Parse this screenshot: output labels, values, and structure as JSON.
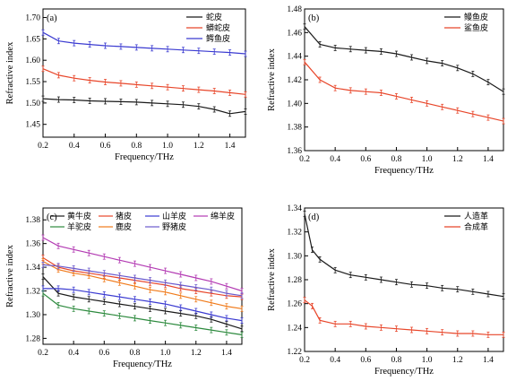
{
  "chart_data": [
    {
      "panel": "(a)",
      "type": "line",
      "xlabel": "Frequency/THz",
      "ylabel": "Refractive index",
      "xlim": [
        0.2,
        1.5
      ],
      "ylim": [
        1.42,
        1.72
      ],
      "xticks": [
        "0.2",
        "0.4",
        "0.6",
        "0.8",
        "1.0",
        "1.2",
        "1.4"
      ],
      "yticks": [
        "1.45",
        "1.50",
        "1.55",
        "1.60",
        "1.65",
        "1.70"
      ],
      "legend_position": "top-right",
      "series": [
        {
          "name": "蛇皮",
          "color": "#1a1a1a",
          "x": [
            0.2,
            0.3,
            0.4,
            0.5,
            0.6,
            0.7,
            0.8,
            0.9,
            1.0,
            1.1,
            1.2,
            1.3,
            1.4,
            1.5
          ],
          "y": [
            1.51,
            1.508,
            1.507,
            1.505,
            1.504,
            1.503,
            1.502,
            1.5,
            1.498,
            1.496,
            1.492,
            1.485,
            1.475,
            1.48
          ]
        },
        {
          "name": "蟒蛇皮",
          "color": "#e8462a",
          "x": [
            0.2,
            0.3,
            0.4,
            0.5,
            0.6,
            0.7,
            0.8,
            0.9,
            1.0,
            1.1,
            1.2,
            1.3,
            1.4,
            1.5
          ],
          "y": [
            1.58,
            1.565,
            1.558,
            1.553,
            1.549,
            1.546,
            1.543,
            1.54,
            1.537,
            1.534,
            1.531,
            1.528,
            1.524,
            1.52
          ]
        },
        {
          "name": "鳄鱼皮",
          "color": "#3b3bd1",
          "x": [
            0.2,
            0.3,
            0.4,
            0.5,
            0.6,
            0.7,
            0.8,
            0.9,
            1.0,
            1.1,
            1.2,
            1.3,
            1.4,
            1.5
          ],
          "y": [
            1.665,
            1.645,
            1.64,
            1.637,
            1.634,
            1.632,
            1.63,
            1.628,
            1.626,
            1.624,
            1.622,
            1.62,
            1.618,
            1.615
          ]
        }
      ]
    },
    {
      "panel": "(b)",
      "type": "line",
      "xlabel": "Frequency/THz",
      "ylabel": "Refractive index",
      "xlim": [
        0.2,
        1.5
      ],
      "ylim": [
        1.36,
        1.48
      ],
      "xticks": [
        "0.2",
        "0.4",
        "0.6",
        "0.8",
        "1.0",
        "1.2",
        "1.4"
      ],
      "yticks": [
        "1.36",
        "1.38",
        "1.40",
        "1.42",
        "1.44",
        "1.46",
        "1.48"
      ],
      "legend_position": "top-right",
      "series": [
        {
          "name": "鳗鱼皮",
          "color": "#1a1a1a",
          "x": [
            0.2,
            0.3,
            0.4,
            0.5,
            0.6,
            0.7,
            0.8,
            0.9,
            1.0,
            1.1,
            1.2,
            1.3,
            1.4,
            1.5
          ],
          "y": [
            1.465,
            1.45,
            1.447,
            1.446,
            1.445,
            1.444,
            1.442,
            1.439,
            1.436,
            1.434,
            1.43,
            1.425,
            1.418,
            1.41
          ]
        },
        {
          "name": "鲨鱼皮",
          "color": "#e8462a",
          "x": [
            0.2,
            0.3,
            0.4,
            0.5,
            0.6,
            0.7,
            0.8,
            0.9,
            1.0,
            1.1,
            1.2,
            1.3,
            1.4,
            1.5
          ],
          "y": [
            1.435,
            1.42,
            1.413,
            1.411,
            1.41,
            1.409,
            1.406,
            1.403,
            1.4,
            1.397,
            1.394,
            1.391,
            1.388,
            1.385
          ]
        }
      ]
    },
    {
      "panel": "(c)",
      "type": "line",
      "xlabel": "Frequency/THz",
      "ylabel": "Refractive index",
      "xlim": [
        0.2,
        1.5
      ],
      "ylim": [
        1.275,
        1.39
      ],
      "xticks": [
        "0.2",
        "0.4",
        "0.6",
        "0.8",
        "1.0",
        "1.2",
        "1.4"
      ],
      "yticks": [
        "1.28",
        "1.30",
        "1.32",
        "1.34",
        "1.36",
        "1.38"
      ],
      "legend_position": "top",
      "series": [
        {
          "name": "黄牛皮",
          "color": "#1a1a1a",
          "x": [
            0.2,
            0.3,
            0.4,
            0.5,
            0.6,
            0.7,
            0.8,
            0.9,
            1.0,
            1.1,
            1.2,
            1.3,
            1.4,
            1.5
          ],
          "y": [
            1.332,
            1.318,
            1.315,
            1.313,
            1.311,
            1.309,
            1.307,
            1.305,
            1.303,
            1.301,
            1.299,
            1.296,
            1.292,
            1.288
          ]
        },
        {
          "name": "猪皮",
          "color": "#e8462a",
          "x": [
            0.2,
            0.3,
            0.4,
            0.5,
            0.6,
            0.7,
            0.8,
            0.9,
            1.0,
            1.1,
            1.2,
            1.3,
            1.4,
            1.5
          ],
          "y": [
            1.348,
            1.34,
            1.337,
            1.335,
            1.333,
            1.331,
            1.329,
            1.327,
            1.325,
            1.322,
            1.32,
            1.318,
            1.316,
            1.315
          ]
        },
        {
          "name": "山羊皮",
          "color": "#3b3bd1",
          "x": [
            0.2,
            0.3,
            0.4,
            0.5,
            0.6,
            0.7,
            0.8,
            0.9,
            1.0,
            1.1,
            1.2,
            1.3,
            1.4,
            1.5
          ],
          "y": [
            1.322,
            1.322,
            1.321,
            1.319,
            1.317,
            1.315,
            1.313,
            1.311,
            1.309,
            1.306,
            1.303,
            1.3,
            1.297,
            1.295
          ]
        },
        {
          "name": "绵羊皮",
          "color": "#b33bb3",
          "x": [
            0.2,
            0.3,
            0.4,
            0.5,
            0.6,
            0.7,
            0.8,
            0.9,
            1.0,
            1.1,
            1.2,
            1.3,
            1.4,
            1.5
          ],
          "y": [
            1.365,
            1.358,
            1.355,
            1.352,
            1.349,
            1.346,
            1.343,
            1.34,
            1.337,
            1.334,
            1.331,
            1.328,
            1.324,
            1.32
          ]
        },
        {
          "name": "羊驼皮",
          "color": "#2d8a3e",
          "x": [
            0.2,
            0.3,
            0.4,
            0.5,
            0.6,
            0.7,
            0.8,
            0.9,
            1.0,
            1.1,
            1.2,
            1.3,
            1.4,
            1.5
          ],
          "y": [
            1.318,
            1.308,
            1.305,
            1.303,
            1.301,
            1.299,
            1.297,
            1.295,
            1.293,
            1.291,
            1.289,
            1.287,
            1.285,
            1.283
          ]
        },
        {
          "name": "鹿皮",
          "color": "#f07a1a",
          "x": [
            0.2,
            0.3,
            0.4,
            0.5,
            0.6,
            0.7,
            0.8,
            0.9,
            1.0,
            1.1,
            1.2,
            1.3,
            1.4,
            1.5
          ],
          "y": [
            1.345,
            1.338,
            1.335,
            1.333,
            1.33,
            1.327,
            1.324,
            1.321,
            1.319,
            1.316,
            1.313,
            1.31,
            1.307,
            1.305
          ]
        },
        {
          "name": "野猪皮",
          "color": "#6a5acd",
          "x": [
            0.2,
            0.3,
            0.4,
            0.5,
            0.6,
            0.7,
            0.8,
            0.9,
            1.0,
            1.1,
            1.2,
            1.3,
            1.4,
            1.5
          ],
          "y": [
            1.342,
            1.341,
            1.339,
            1.337,
            1.335,
            1.333,
            1.331,
            1.329,
            1.327,
            1.325,
            1.323,
            1.321,
            1.318,
            1.316
          ]
        }
      ]
    },
    {
      "panel": "(d)",
      "type": "line",
      "xlabel": "Frequency/THz",
      "ylabel": "Refractive index",
      "xlim": [
        0.2,
        1.5
      ],
      "ylim": [
        1.22,
        1.34
      ],
      "xticks": [
        "0.2",
        "0.4",
        "0.6",
        "0.8",
        "1.0",
        "1.2",
        "1.4"
      ],
      "yticks": [
        "1.22",
        "1.24",
        "1.26",
        "1.28",
        "1.30",
        "1.32",
        "1.34"
      ],
      "legend_position": "top-right",
      "series": [
        {
          "name": "人造革",
          "color": "#1a1a1a",
          "x": [
            0.2,
            0.25,
            0.3,
            0.4,
            0.5,
            0.6,
            0.7,
            0.8,
            0.9,
            1.0,
            1.1,
            1.2,
            1.3,
            1.4,
            1.5
          ],
          "y": [
            1.335,
            1.305,
            1.297,
            1.288,
            1.284,
            1.282,
            1.28,
            1.278,
            1.276,
            1.275,
            1.273,
            1.272,
            1.27,
            1.268,
            1.266
          ]
        },
        {
          "name": "合成革",
          "color": "#e8462a",
          "x": [
            0.2,
            0.25,
            0.3,
            0.4,
            0.5,
            0.6,
            0.7,
            0.8,
            0.9,
            1.0,
            1.1,
            1.2,
            1.3,
            1.4,
            1.5
          ],
          "y": [
            1.263,
            1.258,
            1.246,
            1.243,
            1.243,
            1.241,
            1.24,
            1.239,
            1.238,
            1.237,
            1.236,
            1.235,
            1.235,
            1.234,
            1.234
          ]
        }
      ]
    }
  ]
}
